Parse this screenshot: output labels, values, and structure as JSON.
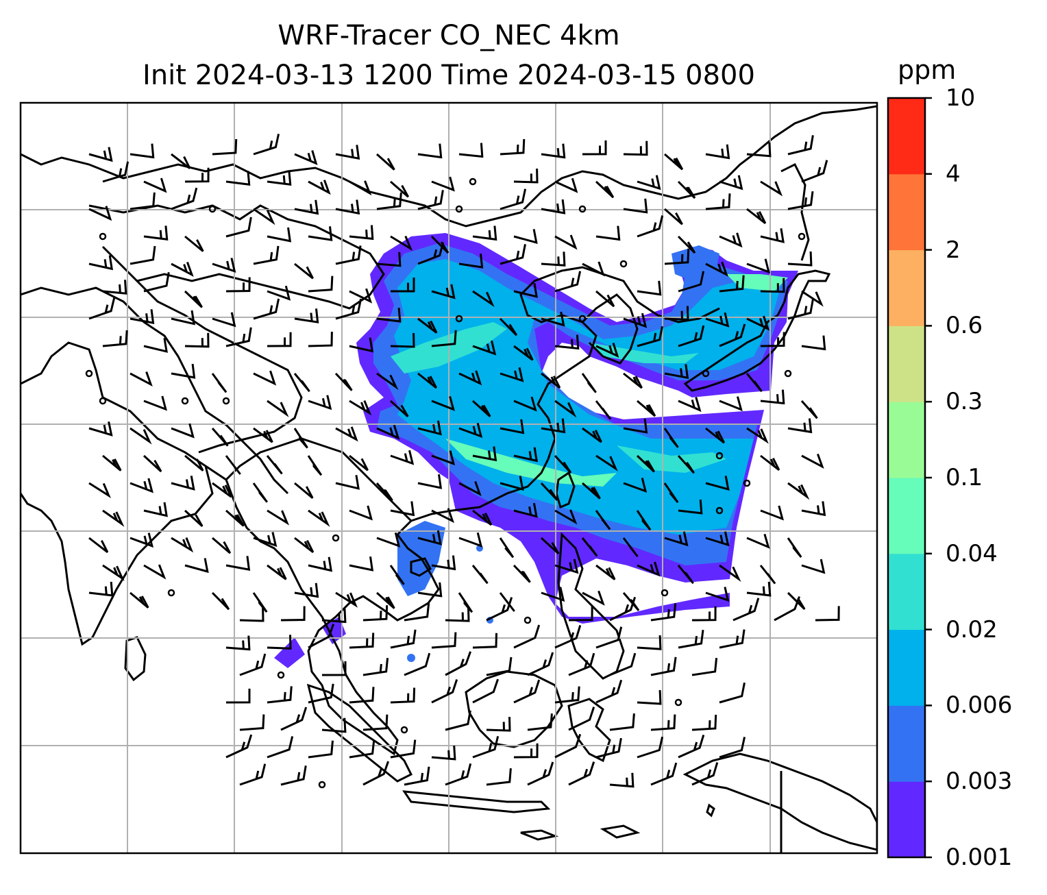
{
  "title": {
    "line1": "WRF-Tracer CO_NEC 4km",
    "line2": "Init 2024-03-13 1200 Time 2024-03-15 0800"
  },
  "colorbar": {
    "unit": "ppm",
    "ticks": [
      "0.001",
      "0.003",
      "0.006",
      "0.02",
      "0.04",
      "0.1",
      "0.3",
      "0.6",
      "2",
      "4",
      "10"
    ],
    "colors": [
      "#6129ff",
      "#3373f3",
      "#00b1ec",
      "#32e0d2",
      "#66fcba",
      "#99fb96",
      "#cde287",
      "#fdb062",
      "#ff7438",
      "#ff2b16"
    ]
  },
  "map": {
    "background": "#ffffff",
    "gridline_color": "#b0b0b0",
    "coastline_color": "#000000",
    "gridlines": true,
    "wind_barbs": true
  }
}
